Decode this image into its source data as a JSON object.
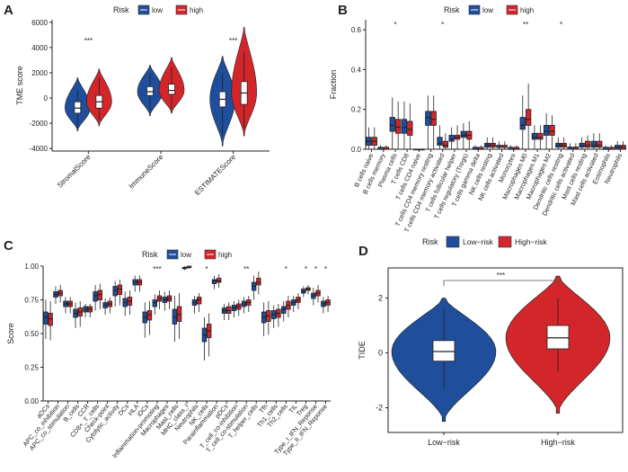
{
  "colors": {
    "low": "#1f4e9c",
    "high": "#d2262b",
    "box_fill": "#ffffff",
    "axis": "#222222"
  },
  "chart_data": [
    {
      "panel": "A",
      "type": "violin",
      "legend_title": "Risk",
      "legend": [
        "low",
        "high"
      ],
      "legend_position": "top",
      "ylabel": "TME score",
      "xlabel": "",
      "ylim": [
        -4200,
        6200
      ],
      "yticks": [
        -4000,
        -2000,
        0,
        2000,
        4000,
        6000
      ],
      "categories": [
        "StromalScore",
        "ImmuneScore",
        "ESTIMATEScore"
      ],
      "significance": [
        "***",
        "",
        "***"
      ],
      "series": [
        {
          "name": "low",
          "stats": [
            {
              "min": -2300,
              "q1": -1200,
              "median": -800,
              "q3": -300,
              "max": 600,
              "vmin": -2600,
              "vmax": 1600
            },
            {
              "min": -1000,
              "q1": 200,
              "median": 500,
              "q3": 900,
              "max": 1900,
              "vmin": -1400,
              "vmax": 2600
            },
            {
              "min": -3000,
              "q1": -700,
              "median": -100,
              "q3": 500,
              "max": 1900,
              "vmin": -3800,
              "vmax": 3300
            }
          ]
        },
        {
          "name": "high",
          "stats": [
            {
              "min": -1800,
              "q1": -800,
              "median": -300,
              "q3": 200,
              "max": 1600,
              "vmin": -2200,
              "vmax": 2300
            },
            {
              "min": -900,
              "q1": 300,
              "median": 600,
              "q3": 1100,
              "max": 2500,
              "vmin": -1200,
              "vmax": 3200
            },
            {
              "min": -2400,
              "q1": -500,
              "median": 400,
              "q3": 1300,
              "max": 3600,
              "vmin": -3000,
              "vmax": 5600
            }
          ]
        }
      ]
    },
    {
      "panel": "B",
      "type": "boxplot",
      "legend_title": "Risk",
      "legend": [
        "low",
        "high"
      ],
      "legend_position": "top",
      "ylabel": "Fraction",
      "xlabel": "",
      "ylim": [
        0,
        0.65
      ],
      "yticks": [
        0.0,
        0.2,
        0.4,
        0.6
      ],
      "categories": [
        "B cells naive",
        "B cells memory",
        "Plasma cells",
        "T cells CD8",
        "T cells CD4 naive",
        "T cells CD4 memory resting",
        "T cells CD4 memory activated",
        "T cells follicular helper",
        "T cells regulatory (Tregs)",
        "T cells gamma delta",
        "NK cells resting",
        "NK cells activated",
        "Monocytes",
        "Macrophages M0",
        "Macrophages M1",
        "Macrophages M2",
        "Dendritic cells resting",
        "Dendritic cells activated",
        "Mast cells resting",
        "Mast cells activated",
        "Eosinophils",
        "Neutrophils"
      ],
      "significance": [
        "",
        "",
        "*",
        "",
        "",
        "",
        "*",
        "",
        "",
        "",
        "",
        "",
        "",
        "**",
        "",
        "",
        "*",
        "",
        "",
        "",
        "",
        ""
      ],
      "series": [
        {
          "name": "low",
          "q1": [
            0.02,
            0.0,
            0.09,
            0.08,
            0.0,
            0.12,
            0.02,
            0.04,
            0.06,
            0.0,
            0.01,
            0.01,
            0.0,
            0.1,
            0.05,
            0.07,
            0.01,
            0.0,
            0.01,
            0.01,
            0.0,
            0.0
          ],
          "median": [
            0.04,
            0.0,
            0.12,
            0.11,
            0.0,
            0.16,
            0.03,
            0.05,
            0.07,
            0.0,
            0.02,
            0.01,
            0.0,
            0.12,
            0.06,
            0.09,
            0.02,
            0.01,
            0.02,
            0.02,
            0.0,
            0.01
          ],
          "q3": [
            0.06,
            0.01,
            0.16,
            0.15,
            0.0,
            0.19,
            0.06,
            0.07,
            0.09,
            0.01,
            0.03,
            0.02,
            0.01,
            0.16,
            0.08,
            0.12,
            0.03,
            0.01,
            0.03,
            0.04,
            0.01,
            0.02
          ],
          "whisker_high": [
            0.11,
            0.02,
            0.26,
            0.24,
            0.0,
            0.27,
            0.12,
            0.11,
            0.13,
            0.02,
            0.06,
            0.04,
            0.02,
            0.27,
            0.12,
            0.18,
            0.06,
            0.03,
            0.06,
            0.08,
            0.02,
            0.04
          ]
        },
        {
          "name": "high",
          "q1": [
            0.02,
            0.0,
            0.08,
            0.07,
            0.0,
            0.12,
            0.01,
            0.05,
            0.05,
            0.0,
            0.01,
            0.01,
            0.0,
            0.12,
            0.05,
            0.07,
            0.01,
            0.0,
            0.01,
            0.01,
            0.0,
            0.0
          ],
          "median": [
            0.04,
            0.0,
            0.11,
            0.1,
            0.0,
            0.15,
            0.02,
            0.06,
            0.07,
            0.0,
            0.02,
            0.01,
            0.0,
            0.15,
            0.06,
            0.09,
            0.02,
            0.01,
            0.02,
            0.02,
            0.0,
            0.01
          ],
          "q3": [
            0.06,
            0.01,
            0.15,
            0.14,
            0.0,
            0.19,
            0.04,
            0.07,
            0.09,
            0.01,
            0.03,
            0.02,
            0.01,
            0.2,
            0.08,
            0.12,
            0.03,
            0.01,
            0.04,
            0.04,
            0.01,
            0.02
          ],
          "whisker_high": [
            0.11,
            0.02,
            0.24,
            0.23,
            0.0,
            0.27,
            0.08,
            0.12,
            0.14,
            0.02,
            0.06,
            0.04,
            0.02,
            0.33,
            0.12,
            0.17,
            0.06,
            0.03,
            0.07,
            0.08,
            0.02,
            0.04
          ]
        }
      ]
    },
    {
      "panel": "C",
      "type": "boxplot",
      "legend_title": "Risk",
      "legend": [
        "low",
        "high"
      ],
      "legend_position": "top",
      "ylabel": "Score",
      "xlabel": "",
      "ylim": [
        0,
        1.0
      ],
      "yticks": [
        0.0,
        0.25,
        0.5,
        0.75,
        1.0
      ],
      "categories": [
        "aDCs",
        "APC_co_inhibition",
        "APC_co_stimulation",
        "B_cells",
        "CCR",
        "CD8+_T_cells",
        "Check-point",
        "Cytolytic_activity",
        "DCs",
        "HLA",
        "iDCs",
        "Inflammation-promoting",
        "Macrophages",
        "Mast_cells",
        "MHC_class_I",
        "Neutrophils",
        "NK_cells",
        "Parainflammation",
        "pDCs",
        "T_cell_co-inhibition",
        "T_cell_co-stimulation",
        "T_helper_cells",
        "Tfh",
        "Th1_cells",
        "Th2_cells",
        "TIL",
        "Treg",
        "Type_I_IFN_Reponse",
        "Type_II_IFN_Reponse"
      ],
      "significance": [
        "",
        "",
        "",
        "",
        "",
        "",
        "",
        "",
        "",
        "",
        "",
        "***",
        "",
        "",
        "*",
        "",
        "*",
        "",
        "",
        "",
        "**",
        "",
        "",
        "",
        "*",
        "",
        "*",
        "*",
        "*"
      ],
      "series": [
        {
          "name": "low",
          "q1": [
            0.57,
            0.77,
            0.7,
            0.62,
            0.66,
            0.74,
            0.69,
            0.78,
            0.7,
            0.86,
            0.58,
            0.7,
            0.73,
            0.57,
            0.98,
            0.71,
            0.44,
            0.87,
            0.65,
            0.67,
            0.7,
            0.82,
            0.58,
            0.61,
            0.65,
            0.71,
            0.8,
            0.76,
            0.7
          ],
          "median": [
            0.62,
            0.79,
            0.72,
            0.65,
            0.68,
            0.78,
            0.71,
            0.82,
            0.73,
            0.88,
            0.62,
            0.73,
            0.75,
            0.62,
            0.99,
            0.73,
            0.49,
            0.89,
            0.67,
            0.69,
            0.72,
            0.85,
            0.62,
            0.64,
            0.68,
            0.73,
            0.81,
            0.78,
            0.72
          ],
          "q3": [
            0.66,
            0.81,
            0.74,
            0.68,
            0.7,
            0.81,
            0.73,
            0.85,
            0.76,
            0.9,
            0.66,
            0.75,
            0.77,
            0.68,
            0.99,
            0.75,
            0.54,
            0.9,
            0.69,
            0.71,
            0.74,
            0.88,
            0.66,
            0.67,
            0.7,
            0.75,
            0.83,
            0.8,
            0.74
          ],
          "whisker_low": [
            0.46,
            0.72,
            0.65,
            0.54,
            0.62,
            0.67,
            0.64,
            0.7,
            0.63,
            0.81,
            0.47,
            0.64,
            0.67,
            0.44,
            0.97,
            0.65,
            0.3,
            0.83,
            0.6,
            0.62,
            0.65,
            0.75,
            0.48,
            0.54,
            0.59,
            0.66,
            0.77,
            0.71,
            0.65
          ],
          "whisker_high": [
            0.75,
            0.85,
            0.77,
            0.73,
            0.72,
            0.86,
            0.76,
            0.89,
            0.81,
            0.93,
            0.73,
            0.79,
            0.81,
            0.78,
            1.0,
            0.78,
            0.62,
            0.93,
            0.72,
            0.74,
            0.77,
            0.93,
            0.73,
            0.71,
            0.74,
            0.78,
            0.85,
            0.84,
            0.77
          ]
        },
        {
          "name": "high",
          "q1": [
            0.56,
            0.78,
            0.7,
            0.63,
            0.66,
            0.75,
            0.7,
            0.79,
            0.71,
            0.86,
            0.6,
            0.74,
            0.74,
            0.59,
            0.99,
            0.72,
            0.47,
            0.88,
            0.65,
            0.68,
            0.71,
            0.86,
            0.59,
            0.62,
            0.68,
            0.73,
            0.82,
            0.78,
            0.71
          ],
          "median": [
            0.61,
            0.8,
            0.72,
            0.66,
            0.68,
            0.79,
            0.72,
            0.83,
            0.74,
            0.88,
            0.64,
            0.76,
            0.76,
            0.64,
            0.99,
            0.75,
            0.52,
            0.89,
            0.67,
            0.7,
            0.73,
            0.88,
            0.63,
            0.65,
            0.71,
            0.75,
            0.83,
            0.8,
            0.73
          ],
          "q3": [
            0.65,
            0.82,
            0.74,
            0.69,
            0.7,
            0.82,
            0.74,
            0.86,
            0.77,
            0.9,
            0.67,
            0.78,
            0.78,
            0.7,
            1.0,
            0.77,
            0.57,
            0.91,
            0.7,
            0.72,
            0.75,
            0.91,
            0.67,
            0.68,
            0.74,
            0.77,
            0.84,
            0.82,
            0.75
          ],
          "whisker_low": [
            0.45,
            0.73,
            0.65,
            0.55,
            0.62,
            0.68,
            0.65,
            0.71,
            0.64,
            0.81,
            0.49,
            0.68,
            0.68,
            0.46,
            0.98,
            0.66,
            0.33,
            0.84,
            0.6,
            0.63,
            0.66,
            0.79,
            0.49,
            0.55,
            0.62,
            0.68,
            0.79,
            0.73,
            0.66
          ],
          "whisker_high": [
            0.74,
            0.86,
            0.77,
            0.74,
            0.72,
            0.87,
            0.77,
            0.9,
            0.82,
            0.93,
            0.74,
            0.82,
            0.82,
            0.8,
            1.0,
            0.8,
            0.65,
            0.94,
            0.73,
            0.75,
            0.78,
            0.96,
            0.74,
            0.72,
            0.78,
            0.8,
            0.86,
            0.86,
            0.78
          ]
        }
      ]
    },
    {
      "panel": "D",
      "type": "violin",
      "legend_title": "Risk",
      "legend": [
        "Low−risk",
        "High−risk"
      ],
      "legend_position": "top",
      "ylabel": "TIDE",
      "xlabel": "",
      "ylim": [
        -2.9,
        3.1
      ],
      "yticks": [
        -2,
        0,
        2
      ],
      "categories": [
        "Low−risk",
        "High−risk"
      ],
      "significance_bracket": "***",
      "series": [
        {
          "name": "Low−risk",
          "stats": {
            "min": -1.3,
            "q1": -0.3,
            "median": 0.05,
            "q3": 0.45,
            "max": 1.6,
            "vmin": -2.5,
            "vmax": 2.0
          }
        },
        {
          "name": "High−risk",
          "stats": {
            "min": -0.7,
            "q1": 0.15,
            "median": 0.55,
            "q3": 1.0,
            "max": 2.0,
            "vmin": -2.2,
            "vmax": 2.8
          }
        }
      ]
    }
  ]
}
